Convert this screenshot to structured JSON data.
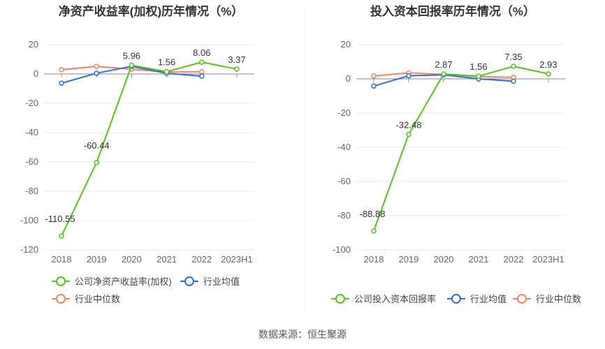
{
  "colors": {
    "company": "#52c41a",
    "avg": "#2f6ed8",
    "median": "#f5845c"
  },
  "source": "数据来源：恒生聚源",
  "chart_data": [
    {
      "type": "line",
      "title": "净资产收益率(加权)历年情况（%）",
      "categories": [
        "2018",
        "2019",
        "2020",
        "2021",
        "2022",
        "2023H1"
      ],
      "ylim": [
        -120,
        20
      ],
      "yticks": [
        20,
        0,
        -20,
        -40,
        -60,
        -80,
        -100,
        -120
      ],
      "grid": true,
      "legend": "bottom",
      "series": [
        {
          "name": "公司净资产收益率(加权)",
          "values": [
            -110.55,
            -60.44,
            5.96,
            1.56,
            8.06,
            3.37
          ],
          "labels": [
            "-110.55",
            "-60.44",
            "5.96",
            "1.56",
            "8.06",
            "3.37"
          ]
        },
        {
          "name": "行业均值",
          "values": [
            -6.3,
            0.5,
            5.2,
            0.5,
            -1.5,
            null
          ]
        },
        {
          "name": "行业中位数",
          "values": [
            2.9,
            5.2,
            3.3,
            1.3,
            1.6,
            null
          ]
        }
      ]
    },
    {
      "type": "line",
      "title": "投入资本回报率历年情况（%）",
      "categories": [
        "2018",
        "2019",
        "2020",
        "2021",
        "2022",
        "2023H1"
      ],
      "ylim": [
        -100,
        20
      ],
      "yticks": [
        20,
        0,
        -20,
        -40,
        -60,
        -80,
        -100
      ],
      "grid": true,
      "legend": "bottom",
      "series": [
        {
          "name": "公司投入资本回报率",
          "values": [
            -88.88,
            -32.48,
            2.87,
            1.56,
            7.35,
            2.93
          ],
          "labels": [
            "-88.88",
            "-32.48",
            "2.87",
            "1.56",
            "7.35",
            "2.93"
          ]
        },
        {
          "name": "行业均值",
          "values": [
            -4.2,
            1.8,
            2.4,
            0,
            -1.4,
            null
          ]
        },
        {
          "name": "行业中位数",
          "values": [
            1.7,
            3.5,
            2.6,
            1.4,
            0.9,
            null
          ]
        }
      ]
    }
  ]
}
